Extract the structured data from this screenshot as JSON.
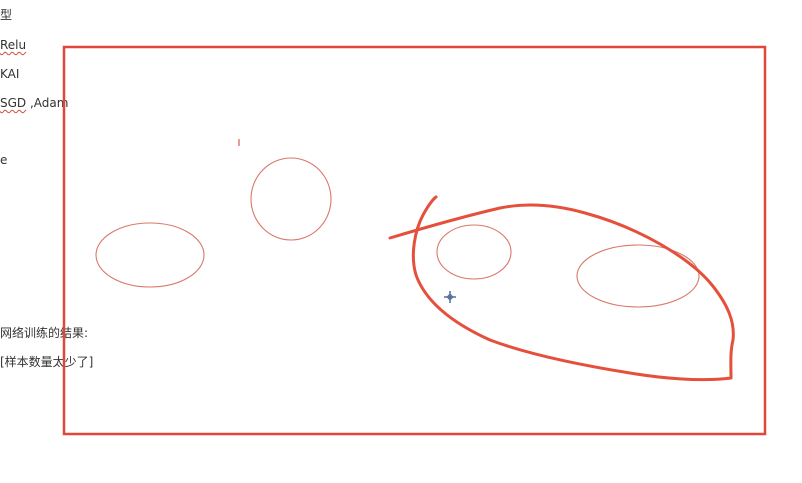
{
  "document": {
    "lines": {
      "model_heading": "型",
      "activation_prefix": "",
      "activation_word": "Relu",
      "init_prefix": "",
      "init_word": "KAI",
      "optimizer_prefix": "",
      "optimizer_word": "SGD",
      "optimizer_suffix": " ,Adam",
      "extra_char": "e",
      "training_results": "网络训练的结果:",
      "sample_note": "[样本数量太少了]"
    }
  },
  "canvas": {
    "tool": "pen-annotation",
    "ink_color": "#e5503c",
    "thin_ink_color": "#d9786a",
    "cursor_color": "#3a5a8a"
  }
}
